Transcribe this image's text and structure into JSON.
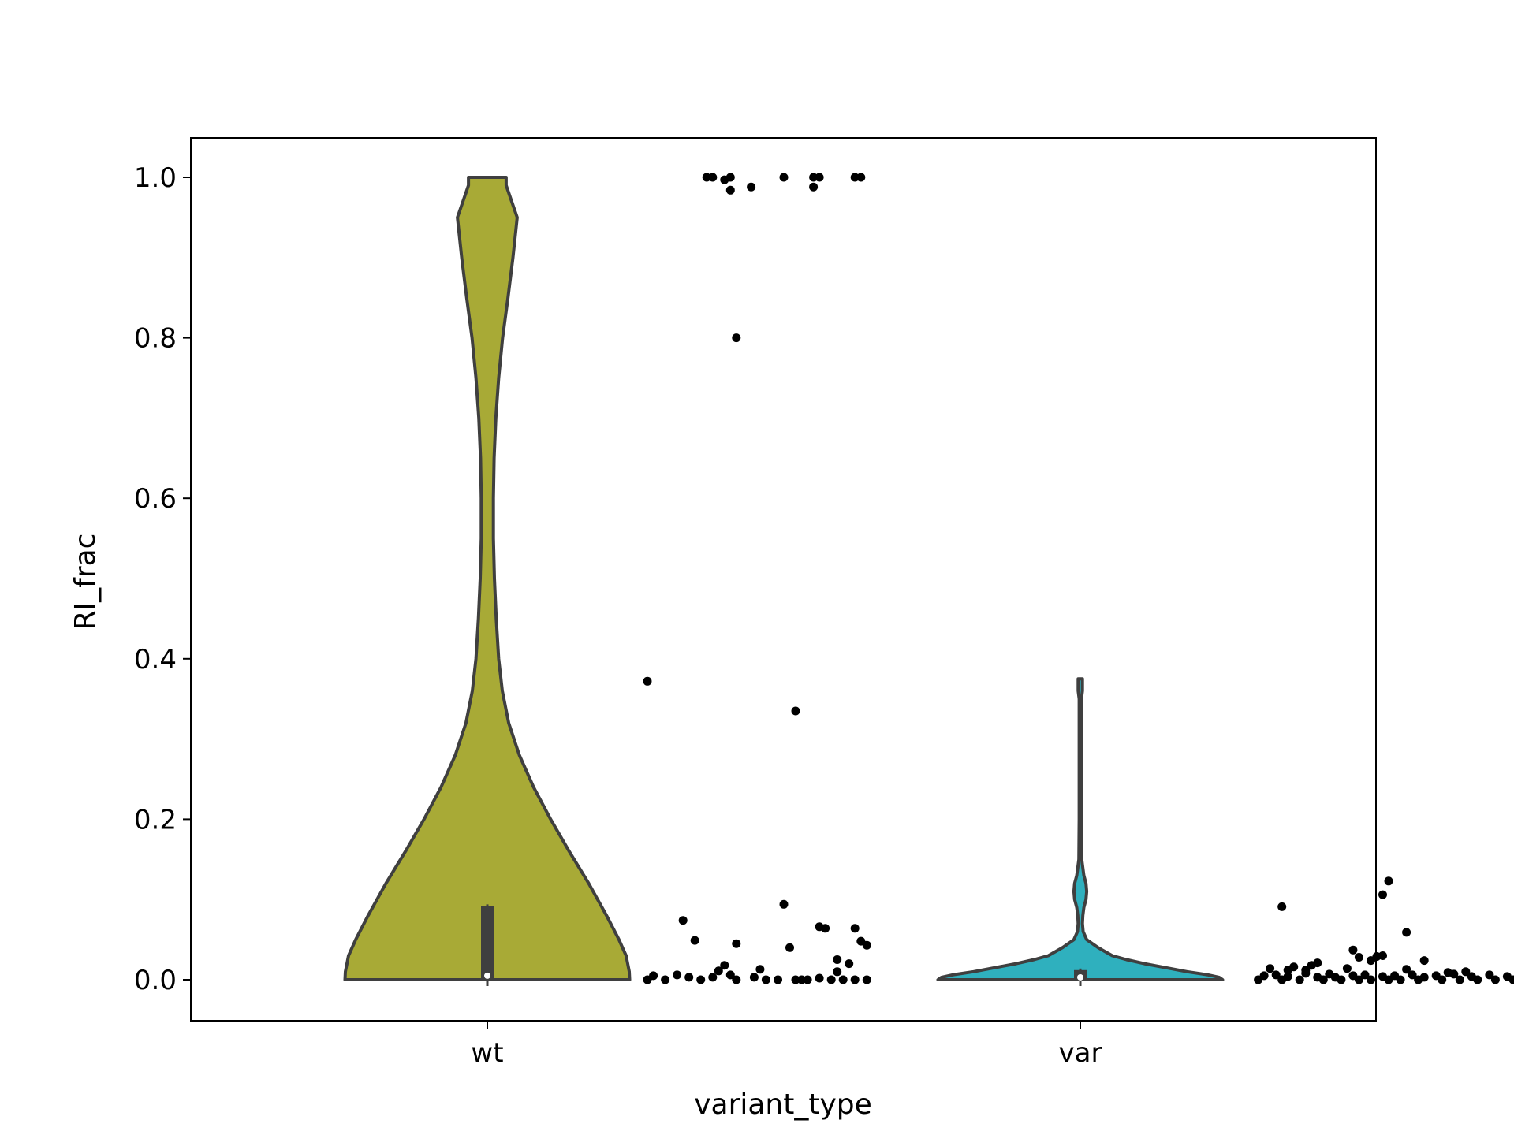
{
  "chart_data": {
    "type": "violin",
    "title": "",
    "xlabel": "variant_type",
    "ylabel": "RI_frac",
    "categories": [
      "wt",
      "var"
    ],
    "ylim": [
      -0.05,
      1.05
    ],
    "yticks": [
      0.0,
      0.2,
      0.4,
      0.6,
      0.8,
      1.0
    ],
    "ytick_labels": [
      "0.0",
      "0.2",
      "0.4",
      "0.6",
      "0.8",
      "1.0"
    ],
    "grid": false,
    "colors": {
      "wt": "#a8aa36",
      "var": "#2fb0be",
      "outline": "#3f3f3f",
      "points": "#000000"
    },
    "violins": [
      {
        "category": "wt",
        "profile": [
          [
            0.0,
            0.4
          ],
          [
            0.01,
            0.399
          ],
          [
            0.03,
            0.39
          ],
          [
            0.05,
            0.37
          ],
          [
            0.08,
            0.335
          ],
          [
            0.12,
            0.285
          ],
          [
            0.16,
            0.23
          ],
          [
            0.2,
            0.178
          ],
          [
            0.24,
            0.13
          ],
          [
            0.28,
            0.09
          ],
          [
            0.32,
            0.06
          ],
          [
            0.36,
            0.042
          ],
          [
            0.4,
            0.032
          ],
          [
            0.45,
            0.025
          ],
          [
            0.5,
            0.02
          ],
          [
            0.55,
            0.017
          ],
          [
            0.6,
            0.017
          ],
          [
            0.65,
            0.019
          ],
          [
            0.7,
            0.024
          ],
          [
            0.75,
            0.032
          ],
          [
            0.8,
            0.043
          ],
          [
            0.85,
            0.058
          ],
          [
            0.9,
            0.072
          ],
          [
            0.95,
            0.084
          ],
          [
            0.99,
            0.053
          ],
          [
            1.0,
            0.053
          ]
        ],
        "box": {
          "q1": 0.0,
          "q3": 0.092,
          "median": 0.005
        },
        "points": [
          [
            0.37,
            1.0
          ],
          [
            0.38,
            1.0
          ],
          [
            0.4,
            0.997
          ],
          [
            0.41,
            0.984
          ],
          [
            0.41,
            1.0
          ],
          [
            0.445,
            0.988
          ],
          [
            0.5,
            1.0
          ],
          [
            0.55,
            1.0
          ],
          [
            0.55,
            0.988
          ],
          [
            0.56,
            1.0
          ],
          [
            0.62,
            1.0
          ],
          [
            0.63,
            1.0
          ],
          [
            0.42,
            0.8
          ],
          [
            0.27,
            0.372
          ],
          [
            0.52,
            0.335
          ],
          [
            0.5,
            0.094
          ],
          [
            0.33,
            0.074
          ],
          [
            0.35,
            0.049
          ],
          [
            0.42,
            0.045
          ],
          [
            0.51,
            0.04
          ],
          [
            0.56,
            0.066
          ],
          [
            0.57,
            0.064
          ],
          [
            0.62,
            0.064
          ],
          [
            0.63,
            0.048
          ],
          [
            0.64,
            0.043
          ],
          [
            0.59,
            0.025
          ],
          [
            0.4,
            0.018
          ],
          [
            0.61,
            0.02
          ],
          [
            0.27,
            0.0
          ],
          [
            0.28,
            0.005
          ],
          [
            0.3,
            0.0
          ],
          [
            0.32,
            0.006
          ],
          [
            0.34,
            0.003
          ],
          [
            0.36,
            0.0
          ],
          [
            0.38,
            0.003
          ],
          [
            0.39,
            0.011
          ],
          [
            0.41,
            0.006
          ],
          [
            0.42,
            0.0
          ],
          [
            0.45,
            0.003
          ],
          [
            0.47,
            0.0
          ],
          [
            0.49,
            0.0
          ],
          [
            0.52,
            0.0
          ],
          [
            0.54,
            0.0
          ],
          [
            0.56,
            0.002
          ],
          [
            0.58,
            0.0
          ],
          [
            0.59,
            0.01
          ],
          [
            0.6,
            0.0
          ],
          [
            0.62,
            0.0
          ],
          [
            0.64,
            0.0
          ],
          [
            0.46,
            0.013
          ],
          [
            0.53,
            0.0
          ]
        ]
      },
      {
        "category": "var",
        "profile": [
          [
            0.0,
            0.4
          ],
          [
            0.003,
            0.39
          ],
          [
            0.006,
            0.36
          ],
          [
            0.01,
            0.3
          ],
          [
            0.015,
            0.24
          ],
          [
            0.02,
            0.18
          ],
          [
            0.025,
            0.13
          ],
          [
            0.03,
            0.09
          ],
          [
            0.04,
            0.05
          ],
          [
            0.05,
            0.018
          ],
          [
            0.06,
            0.008
          ],
          [
            0.07,
            0.006
          ],
          [
            0.08,
            0.007
          ],
          [
            0.09,
            0.01
          ],
          [
            0.1,
            0.016
          ],
          [
            0.11,
            0.018
          ],
          [
            0.12,
            0.016
          ],
          [
            0.13,
            0.01
          ],
          [
            0.15,
            0.004
          ],
          [
            0.2,
            0.003
          ],
          [
            0.25,
            0.003
          ],
          [
            0.3,
            0.003
          ],
          [
            0.35,
            0.003
          ],
          [
            0.36,
            0.006
          ],
          [
            0.37,
            0.006
          ],
          [
            0.375,
            0.006
          ]
        ],
        "box": {
          "q1": 0.0,
          "q3": 0.012,
          "median": 0.003
        },
        "points": [
          [
            1.76,
            0.375
          ],
          [
            1.52,
            0.123
          ],
          [
            1.51,
            0.106
          ],
          [
            1.34,
            0.091
          ],
          [
            1.55,
            0.059
          ],
          [
            1.46,
            0.037
          ],
          [
            1.47,
            0.028
          ],
          [
            1.49,
            0.024
          ],
          [
            1.5,
            0.029
          ],
          [
            1.51,
            0.03
          ],
          [
            1.4,
            0.021
          ],
          [
            1.39,
            0.018
          ],
          [
            1.36,
            0.016
          ],
          [
            1.35,
            0.012
          ],
          [
            1.45,
            0.014
          ],
          [
            1.55,
            0.013
          ],
          [
            1.58,
            0.024
          ],
          [
            1.65,
            0.01
          ],
          [
            1.74,
            0.015
          ],
          [
            1.75,
            0.022
          ],
          [
            1.3,
            0.0
          ],
          [
            1.31,
            0.005
          ],
          [
            1.32,
            0.014
          ],
          [
            1.33,
            0.006
          ],
          [
            1.34,
            0.0
          ],
          [
            1.35,
            0.004
          ],
          [
            1.37,
            0.0
          ],
          [
            1.38,
            0.008
          ],
          [
            1.4,
            0.003
          ],
          [
            1.41,
            0.0
          ],
          [
            1.42,
            0.007
          ],
          [
            1.43,
            0.003
          ],
          [
            1.44,
            0.0
          ],
          [
            1.46,
            0.005
          ],
          [
            1.47,
            0.0
          ],
          [
            1.48,
            0.006
          ],
          [
            1.49,
            0.0
          ],
          [
            1.51,
            0.004
          ],
          [
            1.52,
            0.0
          ],
          [
            1.53,
            0.005
          ],
          [
            1.54,
            0.0
          ],
          [
            1.56,
            0.006
          ],
          [
            1.57,
            0.0
          ],
          [
            1.58,
            0.003
          ],
          [
            1.6,
            0.005
          ],
          [
            1.61,
            0.0
          ],
          [
            1.63,
            0.007
          ],
          [
            1.64,
            0.0
          ],
          [
            1.66,
            0.004
          ],
          [
            1.67,
            0.0
          ],
          [
            1.69,
            0.006
          ],
          [
            1.7,
            0.0
          ],
          [
            1.72,
            0.004
          ],
          [
            1.73,
            0.0
          ],
          [
            1.76,
            0.005
          ],
          [
            1.77,
            0.0
          ],
          [
            1.78,
            0.008
          ],
          [
            1.79,
            0.0
          ],
          [
            1.8,
            0.0
          ],
          [
            1.81,
            0.0
          ],
          [
            1.38,
            0.012
          ],
          [
            1.62,
            0.009
          ]
        ]
      }
    ]
  }
}
